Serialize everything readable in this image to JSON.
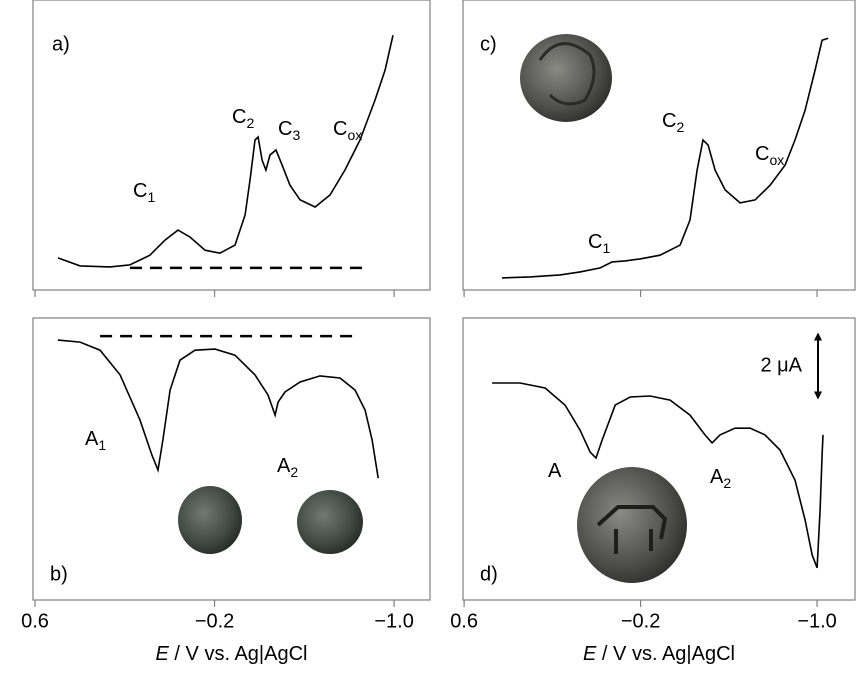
{
  "chart_data": [
    {
      "type": "line",
      "panel_label": "a)",
      "color": "#000000",
      "xlim": [
        0.609,
        -1.16
      ],
      "ylim": [
        0,
        8.66
      ],
      "xticks": [
        0.6,
        -0.2,
        -1.0
      ],
      "x": [
        0.498,
        0.399,
        0.266,
        0.177,
        0.088,
        0.021,
        -0.037,
        -0.091,
        -0.158,
        -0.224,
        -0.291,
        -0.336,
        -0.358,
        -0.38,
        -0.394,
        -0.412,
        -0.429,
        -0.447,
        -0.474,
        -0.501,
        -0.536,
        -0.581,
        -0.648,
        -0.715,
        -0.781,
        -0.848,
        -0.915,
        -0.96,
        -0.995
      ],
      "values": [
        0.96,
        0.72,
        0.69,
        0.75,
        1.04,
        1.49,
        1.79,
        1.58,
        1.19,
        1.1,
        1.34,
        2.24,
        3.28,
        4.48,
        4.57,
        3.88,
        3.58,
        4.03,
        4.18,
        3.73,
        3.13,
        2.69,
        2.48,
        2.84,
        3.58,
        4.48,
        5.67,
        6.57,
        7.61
      ],
      "baseline": {
        "x": [
          0.177,
          -0.871
        ],
        "value": 0.66
      },
      "annotations": [
        {
          "text": "C",
          "sub": "1"
        },
        {
          "text": "C",
          "sub": "2"
        },
        {
          "text": "C",
          "sub": "3"
        },
        {
          "text": "C",
          "sub": "ox"
        }
      ]
    },
    {
      "type": "line",
      "panel_label": "b)",
      "color": "#000000",
      "xlim": [
        0.609,
        -1.16
      ],
      "ylim": [
        0,
        8.42
      ],
      "xticks": [
        {
          "value": 0.6,
          "label": "0.6"
        },
        {
          "value": -0.2,
          "label": "−0.2"
        },
        {
          "value": -1.0,
          "label": "−1.0"
        }
      ],
      "xlabel": {
        "symbol": "E",
        "text": " / V vs. Ag|AgCl"
      },
      "x": [
        0.498,
        0.399,
        0.31,
        0.221,
        0.132,
        0.079,
        0.052,
        0.03,
        -0.002,
        -0.046,
        -0.113,
        -0.202,
        -0.291,
        -0.38,
        -0.438,
        -0.47,
        -0.483,
        -0.514,
        -0.581,
        -0.67,
        -0.759,
        -0.826,
        -0.871,
        -0.902,
        -0.929
      ],
      "values": [
        7.76,
        7.7,
        7.46,
        6.72,
        5.37,
        4.33,
        3.88,
        4.78,
        6.27,
        7.16,
        7.46,
        7.49,
        7.31,
        6.72,
        6.12,
        5.52,
        5.91,
        6.21,
        6.51,
        6.69,
        6.63,
        6.27,
        5.67,
        4.78,
        3.64
      ],
      "baseline": {
        "x": [
          0.31,
          -0.839
        ],
        "value": 7.88
      },
      "annotations": [
        {
          "text": "A",
          "sub": "1"
        },
        {
          "text": "A",
          "sub": "2"
        }
      ]
    },
    {
      "type": "line",
      "panel_label": "c)",
      "color": "#000000",
      "xlim": [
        0.605,
        -1.172
      ],
      "ylim": [
        0,
        8.66
      ],
      "xticks": [
        0.6,
        -0.2,
        -1.0
      ],
      "x": [
        0.428,
        0.301,
        0.165,
        0.074,
        -0.017,
        -0.071,
        -0.13,
        -0.198,
        -0.288,
        -0.379,
        -0.424,
        -0.456,
        -0.483,
        -0.506,
        -0.538,
        -0.583,
        -0.651,
        -0.719,
        -0.787,
        -0.855,
        -0.9,
        -0.946,
        -0.991,
        -1.023,
        -1.05
      ],
      "values": [
        0.36,
        0.39,
        0.45,
        0.54,
        0.66,
        0.84,
        0.87,
        0.93,
        1.04,
        1.34,
        2.09,
        3.58,
        4.48,
        4.33,
        3.58,
        2.99,
        2.6,
        2.69,
        3.13,
        3.73,
        4.48,
        5.37,
        6.57,
        7.46,
        7.52
      ],
      "annotations": [
        {
          "text": "C",
          "sub": "2"
        },
        {
          "text": "C",
          "sub": "1"
        },
        {
          "text": "C",
          "sub": "ox"
        }
      ]
    },
    {
      "type": "line",
      "panel_label": "d)",
      "color": "#000000",
      "xlim": [
        0.605,
        -1.172
      ],
      "ylim": [
        0,
        8.42
      ],
      "xticks": [
        {
          "value": 0.6,
          "label": "0.6"
        },
        {
          "value": -0.2,
          "label": "−0.2"
        },
        {
          "value": -1.0,
          "label": "−1.0"
        }
      ],
      "xlabel": {
        "symbol": "E",
        "text": " / V vs. Ag|AgCl"
      },
      "x": [
        0.473,
        0.346,
        0.233,
        0.142,
        0.074,
        0.029,
        0.002,
        -0.026,
        -0.085,
        -0.153,
        -0.243,
        -0.334,
        -0.424,
        -0.492,
        -0.524,
        -0.56,
        -0.628,
        -0.697,
        -0.764,
        -0.832,
        -0.9,
        -0.946,
        -0.978,
        -1.0,
        -1.014,
        -1.023,
        -1.027
      ],
      "values": [
        6.48,
        6.48,
        6.33,
        5.82,
        5.07,
        4.42,
        4.24,
        4.78,
        5.82,
        6.06,
        6.09,
        5.97,
        5.52,
        4.93,
        4.69,
        4.93,
        5.13,
        5.13,
        4.93,
        4.48,
        3.58,
        2.39,
        1.34,
        0.96,
        2.69,
        4.33,
        4.93
      ],
      "scale_bar": {
        "label": "2 μA",
        "value": 2
      },
      "annotations": [
        {
          "text": "A"
        },
        {
          "text": "A",
          "sub": "2"
        }
      ]
    }
  ]
}
